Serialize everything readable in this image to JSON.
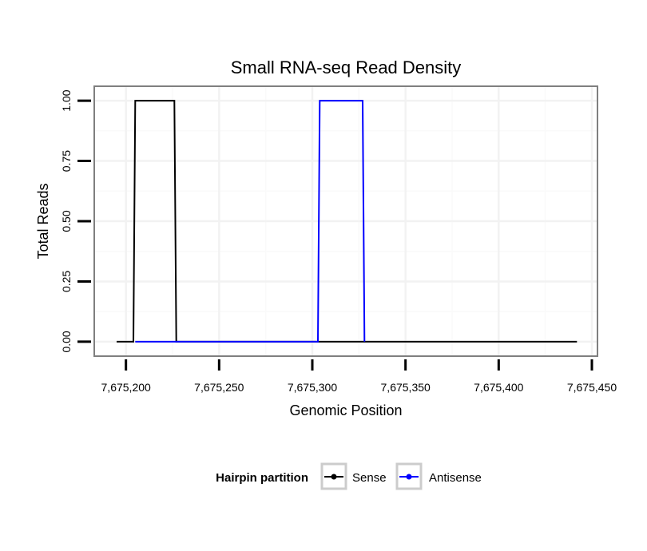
{
  "chart_data": {
    "type": "line",
    "title": "Small RNA-seq Read Density",
    "xlabel": "Genomic Position",
    "ylabel": "Total Reads",
    "xlim": [
      7675183,
      7675453
    ],
    "ylim": [
      -0.06,
      1.06
    ],
    "x_ticks": [
      7675200,
      7675250,
      7675300,
      7675350,
      7675400,
      7675450
    ],
    "x_tick_labels": [
      "7,675,200",
      "7,675,250",
      "7,675,300",
      "7,675,350",
      "7,675,400",
      "7,675,450"
    ],
    "y_ticks": [
      0,
      0.25,
      0.5,
      0.75,
      1.0
    ],
    "y_tick_labels": [
      "0.00",
      "0.25",
      "0.50",
      "0.75",
      "1.00"
    ],
    "grid": true,
    "series": [
      {
        "name": "Sense",
        "color": "#000000",
        "x": [
          7675195,
          7675204,
          7675205,
          7675226,
          7675227,
          7675442
        ],
        "y": [
          0,
          0,
          1,
          1,
          0,
          0
        ]
      },
      {
        "name": "Antisense",
        "color": "#0000ff",
        "x": [
          7675205,
          7675303,
          7675304,
          7675327,
          7675328
        ],
        "y": [
          0,
          0,
          1,
          1,
          0
        ]
      }
    ],
    "legend": {
      "title": "Hairpin partition",
      "position": "bottom",
      "entries": [
        "Sense",
        "Antisense"
      ]
    }
  }
}
